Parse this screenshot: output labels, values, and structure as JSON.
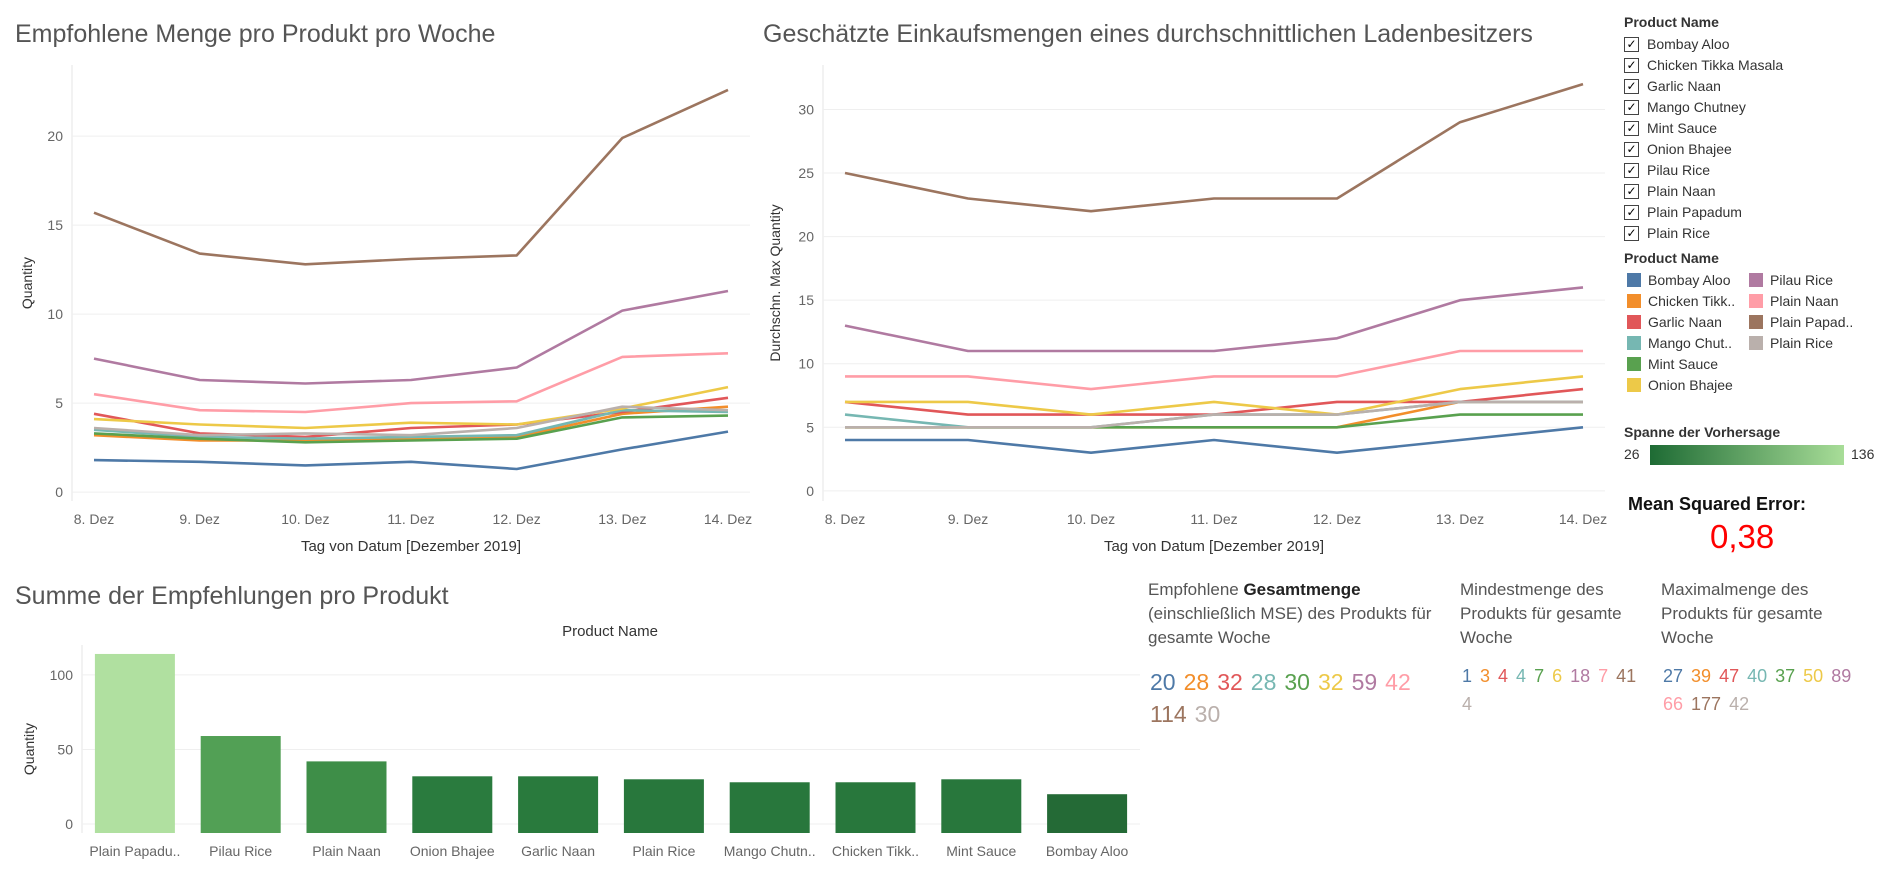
{
  "titles": {
    "chart1": "Empfohlene Menge pro Produkt pro Woche",
    "chart2": "Geschätzte Einkaufsmengen eines durchschnittlichen Ladenbesitzers",
    "chart3": "Summe der Empfehlungen pro Produkt"
  },
  "filter": {
    "title": "Product Name",
    "items": [
      "Bombay Aloo",
      "Chicken Tikka Masala",
      "Garlic Naan",
      "Mango Chutney",
      "Mint Sauce",
      "Onion Bhajee",
      "Pilau Rice",
      "Plain Naan",
      "Plain Papadum",
      "Plain Rice"
    ]
  },
  "color_legend": {
    "title": "Product Name",
    "items": [
      {
        "label": "Bombay Aloo",
        "color": "#4e79a7"
      },
      {
        "label": "Chicken Tikk..",
        "color": "#f28e2b"
      },
      {
        "label": "Garlic Naan",
        "color": "#e15759"
      },
      {
        "label": "Mango Chut..",
        "color": "#76b7b2"
      },
      {
        "label": "Mint Sauce",
        "color": "#59a14f"
      },
      {
        "label": "Onion Bhajee",
        "color": "#edc948"
      },
      {
        "label": "Pilau Rice",
        "color": "#b07aa1"
      },
      {
        "label": "Plain Naan",
        "color": "#ff9da7"
      },
      {
        "label": "Plain Papad..",
        "color": "#9c755f"
      },
      {
        "label": "Plain Rice",
        "color": "#bab0ac"
      }
    ]
  },
  "gradient_legend": {
    "title": "Spanne der Vorhersage",
    "min": "26",
    "max": "136",
    "color_low": "#1e6b34",
    "color_high": "#a8dd98"
  },
  "mse": {
    "label": "Mean Squared Error:",
    "value": "0,38",
    "color": "#ff0000"
  },
  "kpis": {
    "total": {
      "head_pre": "Empfohlene ",
      "head_bold": "Gesamtmenge",
      "head_post": "(einschließlich MSE) des Produkts für gesamte Woche",
      "values": [
        "20",
        "28",
        "32",
        "28",
        "30",
        "32",
        "59",
        "42",
        "114",
        "30"
      ]
    },
    "min": {
      "head": "Mindestmenge des Produkts für gesamte Woche",
      "values": [
        "1",
        "3",
        "4",
        "4",
        "7",
        "6",
        "18",
        "7",
        "41",
        "4"
      ]
    },
    "max": {
      "head": "Maximalmenge des Produkts für gesamte Woche",
      "values": [
        "27",
        "39",
        "47",
        "40",
        "37",
        "50",
        "89",
        "66",
        "177",
        "42"
      ]
    }
  },
  "chart_data": [
    {
      "type": "line",
      "title": "Empfohlene Menge pro Produkt pro Woche",
      "xlabel": "Tag von Datum [Dezember 2019]",
      "ylabel": "Quantity",
      "x": [
        "8. Dez",
        "9. Dez",
        "10. Dez",
        "11. Dez",
        "12. Dez",
        "13. Dez",
        "14. Dez"
      ],
      "ylim": [
        -0.5,
        24
      ],
      "yticks": [
        0,
        5,
        10,
        15,
        20
      ],
      "series": [
        {
          "name": "Bombay Aloo",
          "color": "#4e79a7",
          "values": [
            1.8,
            1.7,
            1.5,
            1.7,
            1.3,
            2.4,
            3.4
          ]
        },
        {
          "name": "Chicken Tikka Masala",
          "color": "#f28e2b",
          "values": [
            3.2,
            2.9,
            2.9,
            3.0,
            3.1,
            4.4,
            4.8
          ]
        },
        {
          "name": "Garlic Naan",
          "color": "#e15759",
          "values": [
            4.4,
            3.3,
            3.1,
            3.6,
            3.8,
            4.5,
            5.3
          ]
        },
        {
          "name": "Mango Chutney",
          "color": "#76b7b2",
          "values": [
            3.5,
            3.1,
            3.0,
            3.1,
            3.2,
            4.6,
            4.5
          ]
        },
        {
          "name": "Mint Sauce",
          "color": "#59a14f",
          "values": [
            3.3,
            3.0,
            2.8,
            2.9,
            3.0,
            4.2,
            4.3
          ]
        },
        {
          "name": "Onion Bhajee",
          "color": "#edc948",
          "values": [
            4.1,
            3.8,
            3.6,
            3.9,
            3.8,
            4.7,
            5.9
          ]
        },
        {
          "name": "Pilau Rice",
          "color": "#b07aa1",
          "values": [
            7.5,
            6.3,
            6.1,
            6.3,
            7.0,
            10.2,
            11.3
          ]
        },
        {
          "name": "Plain Naan",
          "color": "#ff9da7",
          "values": [
            5.5,
            4.6,
            4.5,
            5.0,
            5.1,
            7.6,
            7.8
          ]
        },
        {
          "name": "Plain Papadum",
          "color": "#9c755f",
          "values": [
            15.7,
            13.4,
            12.8,
            13.1,
            13.3,
            19.9,
            22.6
          ]
        },
        {
          "name": "Plain Rice",
          "color": "#bab0ac",
          "values": [
            3.6,
            3.2,
            3.3,
            3.2,
            3.6,
            4.8,
            4.6
          ]
        }
      ]
    },
    {
      "type": "line",
      "title": "Geschätzte Einkaufsmengen eines durchschnittlichen Ladenbesitzers",
      "xlabel": "Tag von Datum [Dezember 2019]",
      "ylabel": "Durchschn. Max Quantity",
      "x": [
        "8. Dez",
        "9. Dez",
        "10. Dez",
        "11. Dez",
        "12. Dez",
        "13. Dez",
        "14. Dez"
      ],
      "ylim": [
        -0.8,
        33.5
      ],
      "yticks": [
        0,
        5,
        10,
        15,
        20,
        25,
        30
      ],
      "series": [
        {
          "name": "Bombay Aloo",
          "color": "#4e79a7",
          "values": [
            4,
            4,
            3,
            4,
            3,
            4,
            5
          ]
        },
        {
          "name": "Chicken Tikka Masala",
          "color": "#f28e2b",
          "values": [
            5,
            5,
            5,
            5,
            5,
            7,
            7
          ]
        },
        {
          "name": "Garlic Naan",
          "color": "#e15759",
          "values": [
            7,
            6,
            6,
            6,
            7,
            7,
            8
          ]
        },
        {
          "name": "Mango Chutney",
          "color": "#76b7b2",
          "values": [
            6,
            5,
            5,
            6,
            6,
            7,
            7
          ]
        },
        {
          "name": "Mint Sauce",
          "color": "#59a14f",
          "values": [
            5,
            5,
            5,
            5,
            5,
            6,
            6
          ]
        },
        {
          "name": "Onion Bhajee",
          "color": "#edc948",
          "values": [
            7,
            7,
            6,
            7,
            6,
            8,
            9
          ]
        },
        {
          "name": "Pilau Rice",
          "color": "#b07aa1",
          "values": [
            13,
            11,
            11,
            11,
            12,
            15,
            16
          ]
        },
        {
          "name": "Plain Naan",
          "color": "#ff9da7",
          "values": [
            9,
            9,
            8,
            9,
            9,
            11,
            11
          ]
        },
        {
          "name": "Plain Papadum",
          "color": "#9c755f",
          "values": [
            25,
            23,
            22,
            23,
            23,
            29,
            32
          ]
        },
        {
          "name": "Plain Rice",
          "color": "#bab0ac",
          "values": [
            5,
            5,
            5,
            6,
            6,
            7,
            7
          ]
        }
      ]
    },
    {
      "type": "bar",
      "title": "Summe der Empfehlungen pro Produkt",
      "header": "Product Name",
      "ylabel": "Quantity",
      "ylim": [
        -6,
        120
      ],
      "yticks": [
        0,
        50,
        100
      ],
      "categories": [
        "Plain Papadu..",
        "Pilau Rice",
        "Plain Naan",
        "Onion Bhajee",
        "Garlic Naan",
        "Plain Rice",
        "Mango Chutn..",
        "Chicken Tikk..",
        "Mint Sauce",
        "Bombay Aloo"
      ],
      "values": [
        114,
        59,
        42,
        32,
        32,
        30,
        28,
        28,
        30,
        20
      ],
      "colors": [
        "#b0e0a0",
        "#52a055",
        "#3e8e48",
        "#2a7b3e",
        "#297a3d",
        "#28773c",
        "#28773c",
        "#28773c",
        "#28773c",
        "#246a36"
      ]
    }
  ]
}
